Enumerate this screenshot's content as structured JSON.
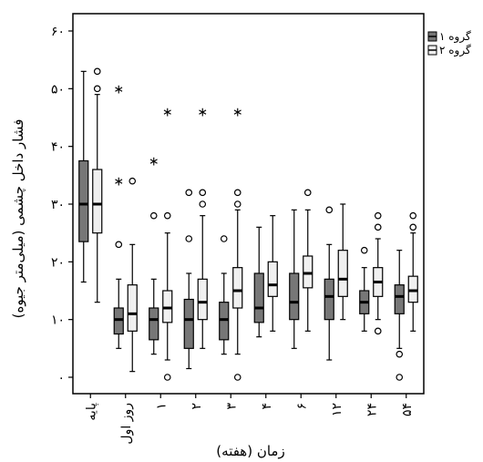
{
  "chart_data": {
    "type": "boxplot",
    "title": "",
    "xlabel": "زمان (هفته)",
    "ylabel": "فشار داخل چشمی (میلی‌متر جیوه)",
    "ylim": [
      0,
      60
    ],
    "yticks": [
      0,
      10,
      20,
      30,
      40,
      50,
      60
    ],
    "ytick_labels": [
      "۰",
      "۱۰",
      "۲۰",
      "۳۰",
      "۴۰",
      "۵۰",
      "۶۰"
    ],
    "categories": [
      "پایه",
      "روز اول",
      "۱",
      "۲",
      "۳",
      "۴",
      "۶",
      "۱۲",
      "۲۴",
      "۵۴"
    ],
    "legend_position": "top-right",
    "series": [
      {
        "name": "گروه ۱",
        "color": "#777777",
        "boxes": [
          {
            "min": 16.5,
            "q1": 23.5,
            "median": 30,
            "q3": 37.5,
            "max": 53,
            "outliers": [],
            "extremes": []
          },
          {
            "min": 5,
            "q1": 7.5,
            "median": 10,
            "q3": 12,
            "max": 17,
            "outliers": [
              23
            ],
            "extremes": [
              34,
              50
            ]
          },
          {
            "min": 4,
            "q1": 6.5,
            "median": 10,
            "q3": 12,
            "max": 17,
            "outliers": [
              28
            ],
            "extremes": [
              37.5
            ]
          },
          {
            "min": 1.5,
            "q1": 5,
            "median": 10,
            "q3": 13.5,
            "max": 18,
            "outliers": [
              24,
              32
            ],
            "extremes": []
          },
          {
            "min": 4,
            "q1": 6.5,
            "median": 10,
            "q3": 13,
            "max": 18,
            "outliers": [
              24
            ],
            "extremes": []
          },
          {
            "min": 7,
            "q1": 9.5,
            "median": 12,
            "q3": 18,
            "max": 26,
            "outliers": [],
            "extremes": []
          },
          {
            "min": 5,
            "q1": 10,
            "median": 13,
            "q3": 18,
            "max": 29,
            "outliers": [],
            "extremes": []
          },
          {
            "min": 3,
            "q1": 10,
            "median": 14,
            "q3": 17,
            "max": 23,
            "outliers": [
              29
            ],
            "extremes": []
          },
          {
            "min": 8,
            "q1": 11,
            "median": 13,
            "q3": 15,
            "max": 19,
            "outliers": [
              22
            ],
            "extremes": []
          },
          {
            "min": 5,
            "q1": 11,
            "median": 14,
            "q3": 16,
            "max": 22,
            "outliers": [
              0,
              4
            ],
            "extremes": []
          }
        ]
      },
      {
        "name": "گروه ۲",
        "color": "#f0f0f0",
        "boxes": [
          {
            "min": 13,
            "q1": 25,
            "median": 30,
            "q3": 36,
            "max": 49,
            "outliers": [
              50,
              53
            ],
            "extremes": []
          },
          {
            "min": 1,
            "q1": 8,
            "median": 11,
            "q3": 16,
            "max": 23,
            "outliers": [
              34
            ],
            "extremes": []
          },
          {
            "min": 3,
            "q1": 9.5,
            "median": 12,
            "q3": 15,
            "max": 25,
            "outliers": [
              0,
              28
            ],
            "extremes": [
              46
            ]
          },
          {
            "min": 5,
            "q1": 10,
            "median": 13,
            "q3": 17,
            "max": 28,
            "outliers": [
              30,
              32
            ],
            "extremes": [
              46
            ]
          },
          {
            "min": 4,
            "q1": 12,
            "median": 15,
            "q3": 19,
            "max": 29,
            "outliers": [
              0,
              30,
              32
            ],
            "extremes": [
              46
            ]
          },
          {
            "min": 8,
            "q1": 14,
            "median": 16,
            "q3": 20,
            "max": 28,
            "outliers": [],
            "extremes": []
          },
          {
            "min": 8,
            "q1": 15.5,
            "median": 18,
            "q3": 21,
            "max": 29,
            "outliers": [
              32
            ],
            "extremes": []
          },
          {
            "min": 10,
            "q1": 14,
            "median": 17,
            "q3": 22,
            "max": 30,
            "outliers": [],
            "extremes": []
          },
          {
            "min": 10,
            "q1": 14,
            "median": 16.5,
            "q3": 19,
            "max": 24,
            "outliers": [
              8,
              26,
              28
            ],
            "extremes": []
          },
          {
            "min": 8,
            "q1": 13,
            "median": 15,
            "q3": 17.5,
            "max": 25,
            "outliers": [
              26,
              28
            ],
            "extremes": []
          }
        ]
      }
    ]
  }
}
